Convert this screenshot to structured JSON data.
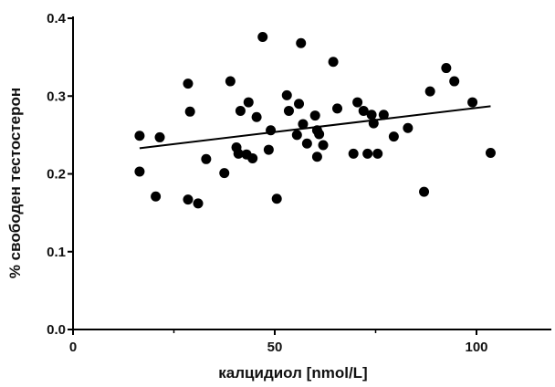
{
  "chart_data": {
    "type": "scatter",
    "xlabel": "калцидиол [nmol/L]",
    "ylabel": "% свободен тестостерон",
    "xlim": [
      0,
      120
    ],
    "ylim": [
      0.0,
      0.4
    ],
    "x_ticks": [
      "0",
      "50",
      "100"
    ],
    "y_ticks": [
      "0.0",
      "0.1",
      "0.2",
      "0.3",
      "0.4"
    ],
    "grid": false,
    "marker_color": "#000000",
    "points": [
      {
        "x": 16.5,
        "y": 0.249
      },
      {
        "x": 16.5,
        "y": 0.203
      },
      {
        "x": 20.5,
        "y": 0.171
      },
      {
        "x": 21.5,
        "y": 0.247
      },
      {
        "x": 28.5,
        "y": 0.316
      },
      {
        "x": 29.0,
        "y": 0.28
      },
      {
        "x": 28.5,
        "y": 0.167
      },
      {
        "x": 31.0,
        "y": 0.162
      },
      {
        "x": 33.0,
        "y": 0.219
      },
      {
        "x": 37.5,
        "y": 0.201
      },
      {
        "x": 39.0,
        "y": 0.319
      },
      {
        "x": 40.5,
        "y": 0.234
      },
      {
        "x": 41.0,
        "y": 0.226
      },
      {
        "x": 41.5,
        "y": 0.281
      },
      {
        "x": 43.0,
        "y": 0.225
      },
      {
        "x": 43.5,
        "y": 0.292
      },
      {
        "x": 44.5,
        "y": 0.22
      },
      {
        "x": 45.5,
        "y": 0.273
      },
      {
        "x": 47.0,
        "y": 0.376
      },
      {
        "x": 48.5,
        "y": 0.231
      },
      {
        "x": 49.0,
        "y": 0.256
      },
      {
        "x": 50.5,
        "y": 0.168
      },
      {
        "x": 53.0,
        "y": 0.301
      },
      {
        "x": 53.5,
        "y": 0.281
      },
      {
        "x": 55.5,
        "y": 0.25
      },
      {
        "x": 56.0,
        "y": 0.29
      },
      {
        "x": 56.5,
        "y": 0.368
      },
      {
        "x": 57.0,
        "y": 0.264
      },
      {
        "x": 58.0,
        "y": 0.239
      },
      {
        "x": 60.0,
        "y": 0.275
      },
      {
        "x": 60.5,
        "y": 0.256
      },
      {
        "x": 60.5,
        "y": 0.222
      },
      {
        "x": 61.0,
        "y": 0.251
      },
      {
        "x": 62.0,
        "y": 0.237
      },
      {
        "x": 64.5,
        "y": 0.344
      },
      {
        "x": 65.5,
        "y": 0.284
      },
      {
        "x": 69.5,
        "y": 0.226
      },
      {
        "x": 70.5,
        "y": 0.292
      },
      {
        "x": 72.0,
        "y": 0.281
      },
      {
        "x": 73.0,
        "y": 0.226
      },
      {
        "x": 74.0,
        "y": 0.276
      },
      {
        "x": 74.5,
        "y": 0.265
      },
      {
        "x": 75.5,
        "y": 0.226
      },
      {
        "x": 77.0,
        "y": 0.276
      },
      {
        "x": 79.5,
        "y": 0.248
      },
      {
        "x": 83.0,
        "y": 0.259
      },
      {
        "x": 87.0,
        "y": 0.177
      },
      {
        "x": 88.5,
        "y": 0.306
      },
      {
        "x": 92.5,
        "y": 0.336
      },
      {
        "x": 94.5,
        "y": 0.319
      },
      {
        "x": 99.0,
        "y": 0.292
      },
      {
        "x": 103.5,
        "y": 0.227
      }
    ],
    "trendline": {
      "x": [
        16.5,
        103.5
      ],
      "y": [
        0.233,
        0.287
      ]
    }
  }
}
